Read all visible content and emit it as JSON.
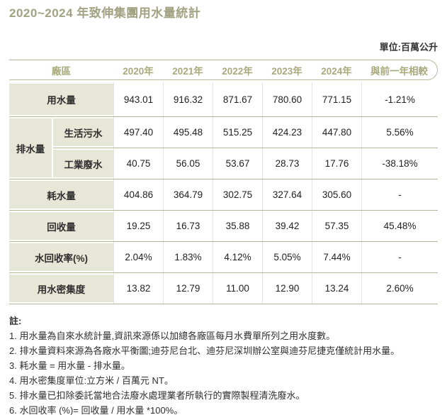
{
  "chart_data": {
    "type": "table",
    "title": "2020~2024 年致伸集團用水量統計",
    "unit": "單位:百萬公升",
    "columns": [
      "廠區",
      "2020年",
      "2021年",
      "2022年",
      "2023年",
      "2024年",
      "與前一年相較"
    ],
    "rows": {
      "drainage_group_label": "排水量",
      "water_use": {
        "label": "用水量",
        "v": [
          "943.01",
          "916.32",
          "871.67",
          "780.60",
          "771.15"
        ],
        "cmp": "-1.21%"
      },
      "domestic": {
        "label": "生活污水",
        "v": [
          "497.40",
          "495.48",
          "515.25",
          "424.23",
          "447.80"
        ],
        "cmp": "5.56%"
      },
      "industrial": {
        "label": "工業廢水",
        "v": [
          "40.75",
          "56.05",
          "53.67",
          "28.73",
          "17.76"
        ],
        "cmp": "-38.18%"
      },
      "consumption": {
        "label": "耗水量",
        "v": [
          "404.86",
          "364.79",
          "302.75",
          "327.64",
          "305.60"
        ],
        "cmp": "-"
      },
      "recycled": {
        "label": "回收量",
        "v": [
          "19.25",
          "16.73",
          "35.88",
          "39.42",
          "57.35"
        ],
        "cmp": "45.48%"
      },
      "recycle_rate": {
        "label": "水回收率(%)",
        "v": [
          "2.04%",
          "1.83%",
          "4.12%",
          "5.05%",
          "7.44%"
        ],
        "cmp": "-"
      },
      "intensity": {
        "label": "用水密集度",
        "v": [
          "13.82",
          "12.79",
          "11.00",
          "12.90",
          "13.24"
        ],
        "cmp": "2.60%"
      }
    },
    "colors": {
      "title_olive": "#a2a283",
      "header_text": "#a9a97e",
      "label_cell_bg": "#e7e7d8",
      "border_olive": "#b6b697"
    }
  },
  "notes": {
    "heading": "註:",
    "items": [
      "1.  用水量為自來水統計量,資訊來源係以加總各廠區每月水費單所列之用水度數。",
      "2.  排水量資料來源為各廠水平衡圖;迪芬尼台北、迪芬尼深圳辦公室與迪芬尼捷克僅統計用水量。",
      "3.  耗水量 = 用水量 - 排水量。",
      "4.  用水密集度單位:立方米 / 百萬元 NT。",
      "5.  排水量已扣除委託當地合法廢水處理業者所執行的實際製程清洗廢水。",
      "6.  水回收率 (%)= 回收量 / 用水量 *100%。"
    ]
  }
}
